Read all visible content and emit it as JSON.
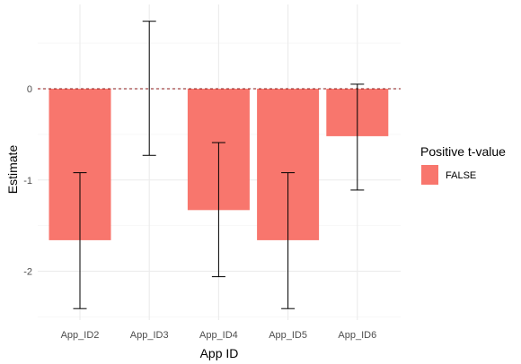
{
  "chart_data": {
    "type": "bar",
    "categories": [
      "App_ID2",
      "App_ID3",
      "App_ID4",
      "App_ID5",
      "App_ID6"
    ],
    "values": [
      -1.66,
      0.0,
      -1.33,
      -1.66,
      -0.52
    ],
    "error_bars": {
      "lower": [
        -2.41,
        -0.73,
        -2.06,
        -2.41,
        -1.11
      ],
      "upper": [
        -0.92,
        0.74,
        -0.59,
        -0.92,
        0.05
      ]
    },
    "xlabel": "App ID",
    "ylabel": "Estimate",
    "ylim": [
      -2.5,
      0.92
    ],
    "yticks": [
      0,
      -1,
      -2
    ],
    "ytick_labels": [
      "0",
      "-1",
      "-2"
    ],
    "reference_line": 0,
    "grid": true,
    "legend": {
      "title": "Positive t-value",
      "entries": [
        {
          "label": "FALSE",
          "color": "#f8766d"
        }
      ],
      "placement": "right"
    },
    "colors": {
      "bar": "#f8766d",
      "grid_major": "#ebebeb",
      "grid_minor": "#f5f5f5",
      "reference_line": "#8b1a1a",
      "error_bar": "#000000"
    }
  }
}
